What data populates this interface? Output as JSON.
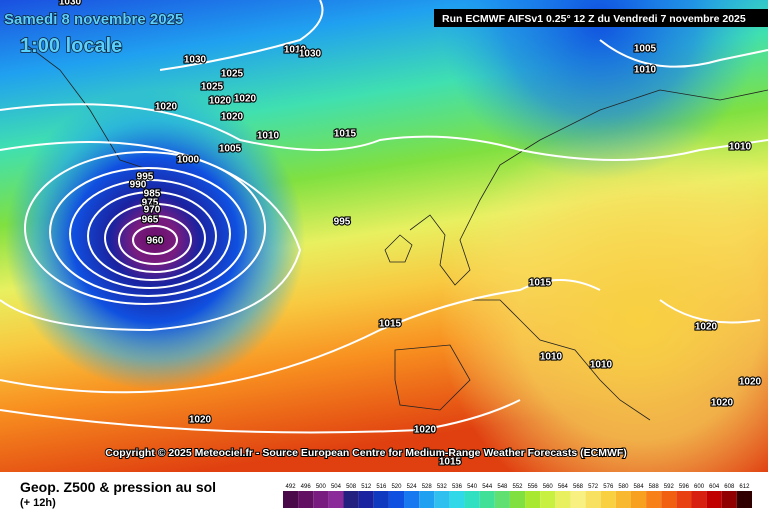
{
  "header": {
    "date": "Samedi 8 novembre 2025",
    "time": "1:00 locale",
    "run": "Run ECMWF AIFSv1 0.25° 12 Z du Vendredi 7 novembre 2025"
  },
  "copyright": "Copyright © 2025 Meteociel.fr - Source European Centre for Medium-Range Weather Forecasts (ECMWF)",
  "footer": {
    "title": "Geop. Z500 & pression au sol",
    "step": "(+ 12h)"
  },
  "isobar_labels": [
    "1030",
    "1010",
    "1030",
    "1030",
    "1025",
    "1025",
    "1020",
    "1020",
    "1020",
    "1020",
    "1010",
    "1015",
    "1005",
    "1000",
    "995",
    "990",
    "985",
    "975",
    "970",
    "965",
    "960",
    "995",
    "1005",
    "1010",
    "1010",
    "1015",
    "1015",
    "1020",
    "1010",
    "1010",
    "1020",
    "1020",
    "1020",
    "1020",
    "1015"
  ],
  "scale": [
    {
      "label": "492",
      "color": "#4a0a4a"
    },
    {
      "label": "496",
      "color": "#621062"
    },
    {
      "label": "500",
      "color": "#781c80"
    },
    {
      "label": "504",
      "color": "#8a2b99"
    },
    {
      "label": "508",
      "color": "#24207f"
    },
    {
      "label": "512",
      "color": "#1a22a0"
    },
    {
      "label": "516",
      "color": "#0f3ac0"
    },
    {
      "label": "520",
      "color": "#1050e0"
    },
    {
      "label": "524",
      "color": "#1878f0"
    },
    {
      "label": "528",
      "color": "#20a0f0"
    },
    {
      "label": "532",
      "color": "#30c0f0"
    },
    {
      "label": "536",
      "color": "#30d8e8"
    },
    {
      "label": "540",
      "color": "#30e0c0"
    },
    {
      "label": "544",
      "color": "#40e098"
    },
    {
      "label": "548",
      "color": "#60e070"
    },
    {
      "label": "552",
      "color": "#80e040"
    },
    {
      "label": "556",
      "color": "#a8e830"
    },
    {
      "label": "560",
      "color": "#c8f040"
    },
    {
      "label": "564",
      "color": "#e8f060"
    },
    {
      "label": "568",
      "color": "#f8f080"
    },
    {
      "label": "572",
      "color": "#f8e060"
    },
    {
      "label": "576",
      "color": "#f8d040"
    },
    {
      "label": "580",
      "color": "#f8b830"
    },
    {
      "label": "584",
      "color": "#f8a020"
    },
    {
      "label": "588",
      "color": "#f88018"
    },
    {
      "label": "592",
      "color": "#f06010"
    },
    {
      "label": "596",
      "color": "#e84010"
    },
    {
      "label": "600",
      "color": "#d82010"
    },
    {
      "label": "604",
      "color": "#c00000"
    },
    {
      "label": "608",
      "color": "#900000"
    },
    {
      "label": "612",
      "color": "#300000"
    }
  ]
}
